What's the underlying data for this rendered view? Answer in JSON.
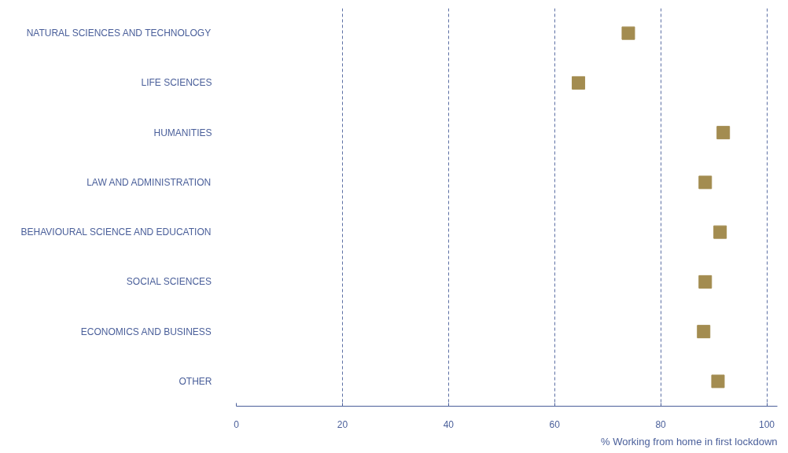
{
  "chart_data": {
    "type": "scatter",
    "orientation": "horizontal",
    "xlabel": "% Working from home in first lockdown",
    "categories": [
      "NATURAL SCIENCES AND TECHNOLOGY",
      "LIFE SCIENCES",
      "HUMANITIES",
      "LAW AND ADMINISTRATION",
      "BEHAVIOURAL SCIENCE AND EDUCATION",
      "SOCIAL SCIENCES",
      "ECONOMICS AND BUSINESS",
      "OTHER"
    ],
    "series": [
      {
        "color": "#a38c50",
        "values": [
          73.9,
          64.5,
          91.8,
          88.4,
          91.2,
          88.4,
          88.1,
          90.8
        ]
      }
    ],
    "marker": "square",
    "xlim": [
      0,
      102
    ],
    "xticks": [
      0,
      20,
      40,
      60,
      80,
      100
    ],
    "grid": "x"
  }
}
